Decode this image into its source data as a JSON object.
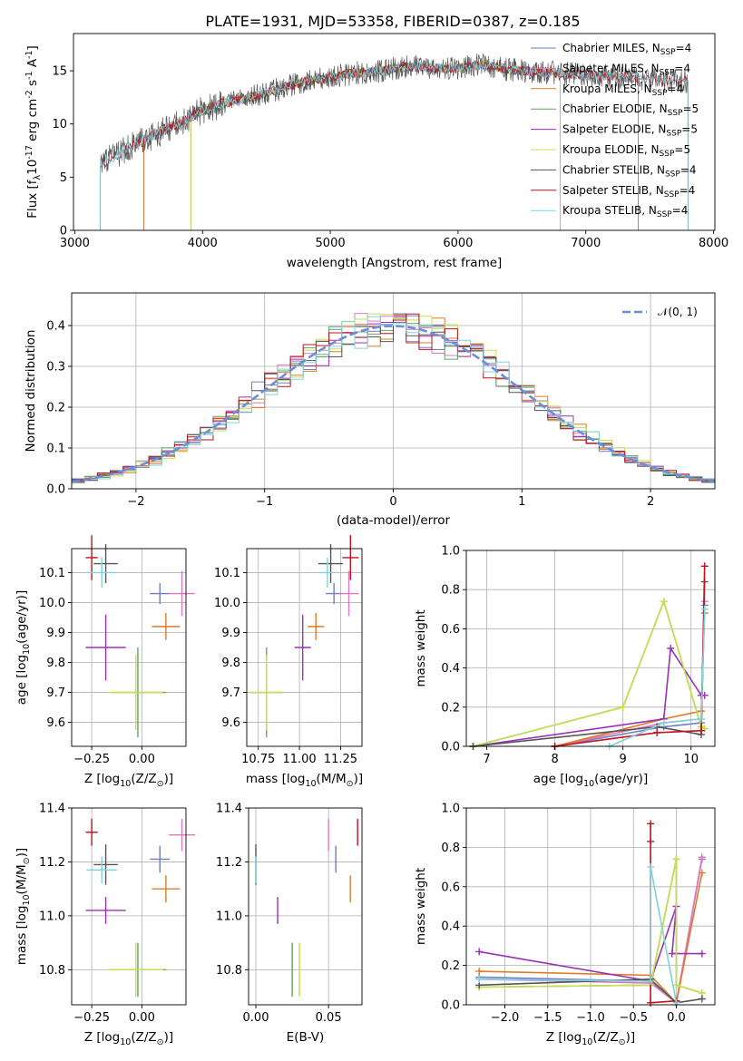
{
  "figure": {
    "title": "PLATE=1931, MJD=53358, FIBERID=0387, z=0.185"
  },
  "series": [
    {
      "name": "Chabrier MILES, N$_{SSP}$=4",
      "label_base": "Chabrier MILES, N",
      "label_sub": "SSP",
      "label_tail": "=4",
      "color": "#6f7fbf",
      "wmin": 3540,
      "wmax": 7410,
      "age": 10.03,
      "age_err": 0.07,
      "Z": 0.09,
      "Z_err": 0.1,
      "mass": 11.21,
      "mass_err": 0.1,
      "ebv": 0.055,
      "ebv_err": 0.2,
      "ssp_ages": [
        8.0,
        9.6,
        10.15,
        10.2
      ],
      "ssp_weights": [
        0.0,
        0.1,
        0.12,
        0.72
      ],
      "ssp_Z": [
        -2.3,
        -0.3,
        0.0,
        0.3
      ],
      "ssp_Zw": [
        0.14,
        0.12,
        0.01,
        0.74
      ]
    },
    {
      "name": "Salpeter MILES, N$_{SSP}$=4",
      "label_base": "Salpeter MILES, N",
      "label_sub": "SSP",
      "label_tail": "=4",
      "color": "#e377c2",
      "wmin": 3540,
      "wmax": 7410,
      "age": 10.03,
      "age_err": 0.15,
      "Z": 0.2,
      "Z_err": 0.13,
      "mass": 11.3,
      "mass_err": 0.12,
      "ebv": 0.05,
      "ebv_err": 0.25,
      "ssp_ages": [
        8.0,
        9.6,
        10.15,
        10.2
      ],
      "ssp_weights": [
        0.0,
        0.12,
        0.14,
        0.74
      ],
      "ssp_Z": [
        -2.3,
        -0.3,
        0.0,
        0.3
      ],
      "ssp_Zw": [
        0.13,
        0.11,
        0.01,
        0.75
      ]
    },
    {
      "name": "Kroupa MILES, N$_{SSP}$=4",
      "label_base": "Kroupa MILES, N",
      "label_sub": "SSP",
      "label_tail": "=4",
      "color": "#e07b28",
      "wmin": 3540,
      "wmax": 7410,
      "age": 9.92,
      "age_err": 0.09,
      "Z": 0.12,
      "Z_err": 0.14,
      "mass": 11.1,
      "mass_err": 0.1,
      "ebv": 0.065,
      "ebv_err": 0.15,
      "ssp_ages": [
        8.0,
        9.6,
        10.15,
        10.2
      ],
      "ssp_weights": [
        0.0,
        0.14,
        0.18,
        0.68
      ],
      "ssp_Z": [
        -2.3,
        -0.3,
        0.0,
        0.3
      ],
      "ssp_Zw": [
        0.17,
        0.15,
        0.01,
        0.67
      ]
    },
    {
      "name": "Chabrier ELODIE, N$_{SSP}$=5",
      "label_base": "Chabrier ELODIE, N",
      "label_sub": "SSP",
      "label_tail": "=5",
      "color": "#5fa65f",
      "wmin": 3910,
      "wmax": 6800,
      "age": 9.7,
      "age_err": 0.3,
      "Z": -0.02,
      "Z_err": 0.28,
      "mass": 10.8,
      "mass_err": 0.2,
      "ebv": 0.025,
      "ebv_err": 0.25,
      "ssp_ages": [
        6.8,
        9.0,
        9.6,
        10.15,
        10.2
      ],
      "ssp_weights": [
        0.0,
        0.2,
        0.74,
        0.1,
        0.09
      ],
      "ssp_Z": [
        -2.3,
        -0.3,
        0.0,
        0.0,
        0.3
      ],
      "ssp_Zw": [
        0.09,
        0.1,
        0.74,
        0.1,
        0.06
      ]
    },
    {
      "name": "Salpeter ELODIE, N$_{SSP}$=5",
      "label_base": "Salpeter ELODIE, N",
      "label_sub": "SSP",
      "label_tail": "=5",
      "color": "#9b30b8",
      "wmin": 3910,
      "wmax": 6800,
      "age": 9.85,
      "age_err": 0.22,
      "Z": -0.18,
      "Z_err": 0.2,
      "mass": 11.02,
      "mass_err": 0.1,
      "ebv": 0.015,
      "ebv_err": 0.1,
      "ssp_ages": [
        6.8,
        9.6,
        9.7,
        10.15,
        10.2
      ],
      "ssp_weights": [
        0.0,
        0.14,
        0.5,
        0.26,
        0.26
      ],
      "ssp_Z": [
        -2.3,
        -0.3,
        0.0,
        -0.05,
        0.3
      ],
      "ssp_Zw": [
        0.27,
        0.12,
        0.5,
        0.26,
        0.26
      ]
    },
    {
      "name": "Kroupa ELODIE, N$_{SSP}$=5",
      "label_base": "Kroupa ELODIE, N",
      "label_sub": "SSP",
      "label_tail": "=5",
      "color": "#c8e04a",
      "wmin": 3910,
      "wmax": 6800,
      "age": 9.7,
      "age_err": 0.25,
      "Z": -0.03,
      "Z_err": 0.27,
      "mass": 10.8,
      "mass_err": 0.2,
      "ebv": 0.03,
      "ebv_err": 0.3,
      "ssp_ages": [
        6.8,
        9.0,
        9.6,
        10.15,
        10.2
      ],
      "ssp_weights": [
        0.0,
        0.2,
        0.74,
        0.1,
        0.09
      ],
      "ssp_Z": [
        -2.3,
        -0.3,
        0.0,
        0.0,
        0.3
      ],
      "ssp_Zw": [
        0.09,
        0.1,
        0.74,
        0.1,
        0.06
      ]
    },
    {
      "name": "Chabrier STELIB, N$_{SSP}$=4",
      "label_base": "Chabrier STELIB, N",
      "label_sub": "SSP",
      "label_tail": "=4",
      "color": "#555555",
      "wmin": 3200,
      "wmax": 7800,
      "age": 10.13,
      "age_err": 0.13,
      "Z": -0.18,
      "Z_err": 0.12,
      "mass": 11.19,
      "mass_err": 0.15,
      "ebv": 0.0,
      "ebv_err": 0.1,
      "ssp_ages": [
        6.8,
        9.5,
        10.15,
        10.2
      ],
      "ssp_weights": [
        0.0,
        0.1,
        0.06,
        0.84
      ],
      "ssp_Z": [
        -2.3,
        -0.3,
        0.0,
        0.3
      ],
      "ssp_Zw": [
        0.1,
        0.13,
        0.01,
        0.03
      ]
    },
    {
      "name": "Salpeter STELIB, N$_{SSP}$=4",
      "label_base": "Salpeter STELIB, N",
      "label_sub": "SSP",
      "label_tail": "=4",
      "color": "#c0111f",
      "wmin": 3200,
      "wmax": 7800,
      "age": 10.15,
      "age_err": 0.15,
      "Z": -0.25,
      "Z_err": 0.06,
      "mass": 11.31,
      "mass_err": 0.1,
      "ebv": 0.07,
      "ebv_err": 0.2,
      "ssp_ages": [
        8.0,
        9.5,
        10.15,
        10.2
      ],
      "ssp_weights": [
        0.0,
        0.07,
        0.08,
        0.92
      ],
      "ssp_Z": [
        -0.3,
        -0.3,
        -0.3,
        0.0
      ],
      "ssp_Zw": [
        0.92,
        0.83,
        0.01,
        0.02
      ]
    },
    {
      "name": "Kroupa STELIB, N$_{SSP}$=4",
      "label_base": "Kroupa STELIB, N",
      "label_sub": "SSP",
      "label_tail": "=4",
      "color": "#7fd3dc",
      "wmin": 3200,
      "wmax": 7800,
      "age": 10.1,
      "age_err": 0.1,
      "Z": -0.2,
      "Z_err": 0.15,
      "mass": 11.17,
      "mass_err": 0.1,
      "ebv": 0.0,
      "ebv_err": 0.15,
      "ssp_ages": [
        8.8,
        9.6,
        10.15,
        10.2
      ],
      "ssp_weights": [
        0.0,
        0.12,
        0.14,
        0.7
      ],
      "ssp_Z": [
        -2.3,
        -0.3,
        -0.3,
        0.0
      ],
      "ssp_Zw": [
        0.13,
        0.12,
        0.7,
        0.01
      ]
    }
  ],
  "chart_data": [
    {
      "type": "line",
      "panel": "spectrum",
      "title": "PLATE=1931, MJD=53358, FIBERID=0387, z=0.185",
      "xlabel": "wavelength [Angstrom, rest frame]",
      "ylabel": "Flux [f$_\\lambda$10$^{-17}$ erg cm$^{-2}$ s$^{-1}$ A$^{-1}$]",
      "xlim": [
        2990,
        8010
      ],
      "ylim": [
        0,
        18.5
      ],
      "xticks": [
        3000,
        4000,
        5000,
        6000,
        7000,
        8000
      ],
      "yticks": [
        0,
        5,
        10,
        15
      ],
      "grid": false,
      "legend": "top-right",
      "continuum": {
        "x": [
          3200,
          3400,
          3600,
          3800,
          4000,
          4200,
          4400,
          4600,
          4800,
          5000,
          5200,
          5400,
          5600,
          5800,
          6000,
          6200,
          6400,
          6600,
          6800,
          7000,
          7200,
          7400,
          7600,
          7800
        ],
        "y": [
          6.2,
          7.6,
          8.8,
          10.0,
          11.3,
          12.0,
          12.6,
          13.3,
          14.0,
          14.4,
          14.8,
          15.0,
          15.4,
          15.3,
          15.2,
          15.6,
          15.1,
          14.9,
          14.8,
          14.6,
          14.5,
          14.3,
          14.1,
          14.0
        ]
      }
    },
    {
      "type": "histogram",
      "panel": "residuals",
      "xlabel": "(data-model)/error",
      "ylabel": "Normed distribution",
      "xlim": [
        -2.5,
        2.5
      ],
      "ylim": [
        0,
        0.48
      ],
      "xticks": [
        -2,
        -1,
        0,
        1,
        2
      ],
      "yticks": [
        0.0,
        0.1,
        0.2,
        0.3,
        0.4
      ],
      "grid": true,
      "legend": "top-right",
      "reference_curve": {
        "name": "$\\mathcal{N}(0,1)$",
        "label_text": "𝒩(0, 1)",
        "color": "#6a8fd8",
        "mean": 0,
        "sigma": 1
      }
    },
    {
      "type": "scatter",
      "panel": "age-vs-Z",
      "xlabel": "Z [log$_{10}$(Z/Z$_\\odot$)]",
      "ylabel": "age [log$_{10}$(age/yr)]",
      "xlim": [
        -0.35,
        0.22
      ],
      "ylim": [
        9.52,
        10.18
      ],
      "xticks": [
        -0.25,
        0.0
      ],
      "yticks": [
        9.6,
        9.7,
        9.8,
        9.9,
        10.0,
        10.1
      ],
      "grid": true
    },
    {
      "type": "scatter",
      "panel": "age-vs-mass",
      "xlabel": "mass [log$_{10}$(M/M$_\\odot$)]",
      "ylabel": "",
      "xlim": [
        10.68,
        11.38
      ],
      "ylim": [
        9.52,
        10.18
      ],
      "xticks": [
        10.75,
        11.0,
        11.25
      ],
      "yticks": [
        9.6,
        9.7,
        9.8,
        9.9,
        10.0,
        10.1
      ],
      "grid": true
    },
    {
      "type": "line",
      "panel": "mass-weight-vs-age",
      "xlabel": "age [log$_{10}$(age/yr)]",
      "ylabel": "mass weight",
      "xlim": [
        6.7,
        10.35
      ],
      "ylim": [
        0,
        1.0
      ],
      "xticks": [
        7,
        8,
        9,
        10
      ],
      "yticks": [
        0.0,
        0.2,
        0.4,
        0.6,
        0.8,
        1.0
      ],
      "grid": true
    },
    {
      "type": "scatter",
      "panel": "mass-vs-Z",
      "xlabel": "Z [log$_{10}$(Z/Z$_\\odot$)]",
      "ylabel": "mass [log$_{10}$(M/M$_\\odot$)]",
      "xlim": [
        -0.35,
        0.22
      ],
      "ylim": [
        10.67,
        11.4
      ],
      "xticks": [
        -0.25,
        0.0
      ],
      "yticks": [
        10.8,
        11.0,
        11.2,
        11.4
      ],
      "grid": true
    },
    {
      "type": "scatter",
      "panel": "mass-vs-ebv",
      "xlabel": "E(B-V)",
      "ylabel": "",
      "xlim": [
        -0.005,
        0.073
      ],
      "ylim": [
        10.67,
        11.4
      ],
      "xticks": [
        0.0,
        0.05
      ],
      "yticks": [
        10.8,
        11.0,
        11.2,
        11.4
      ],
      "grid": true
    },
    {
      "type": "line",
      "panel": "mass-weight-vs-Z",
      "xlabel": "Z [log$_{10}$(Z/Z$_\\odot$)]",
      "ylabel": "mass weight",
      "xlim": [
        -2.45,
        0.45
      ],
      "ylim": [
        0,
        1.0
      ],
      "xticks": [
        -2.0,
        -1.5,
        -1.0,
        -0.5,
        0.0
      ],
      "yticks": [
        0.0,
        0.2,
        0.4,
        0.6,
        0.8,
        1.0
      ],
      "grid": true
    }
  ]
}
